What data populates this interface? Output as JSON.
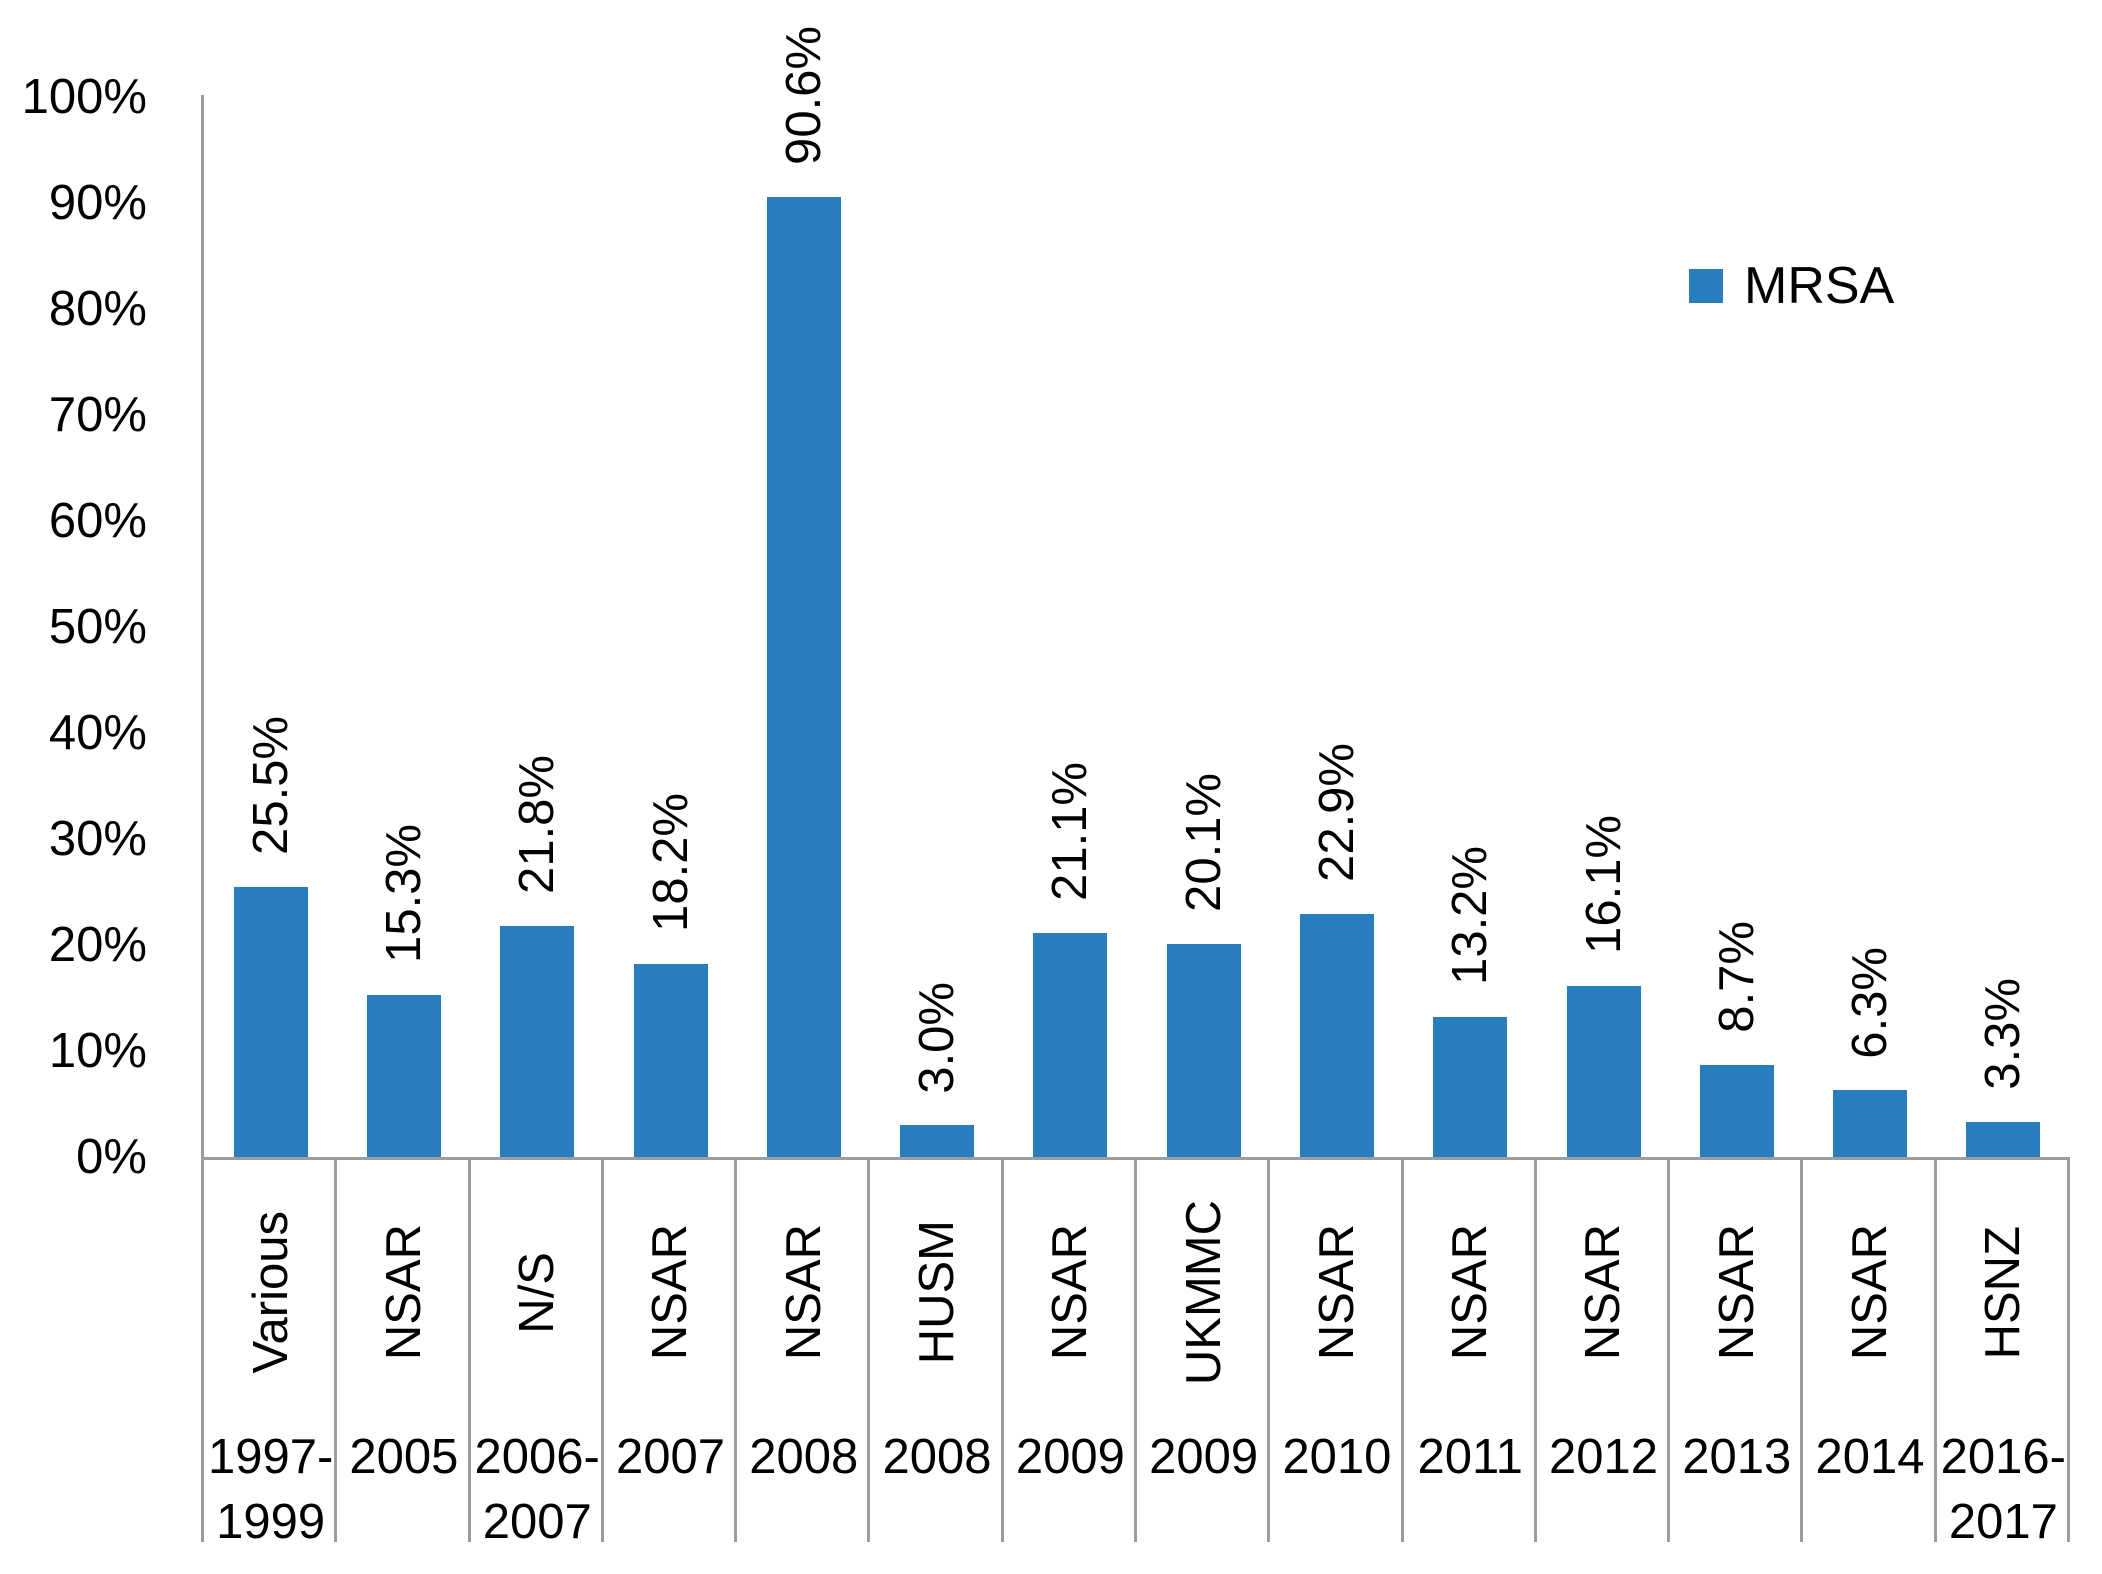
{
  "chart_data": {
    "type": "bar",
    "title": "",
    "legend_position": "top-right",
    "grid": false,
    "categories": [
      "Various",
      "NSAR",
      "N/S",
      "NSAR",
      "NSAR",
      "HUSM",
      "NSAR",
      "UKMMC",
      "NSAR",
      "NSAR",
      "NSAR",
      "NSAR",
      "NSAR",
      "HSNZ"
    ],
    "category_years": [
      "1997-1999",
      "2005",
      "2006-2007",
      "2007",
      "2008",
      "2008",
      "2009",
      "2009",
      "2010",
      "2011",
      "2012",
      "2013",
      "2014",
      "2016-2017"
    ],
    "series": [
      {
        "name": "MRSA",
        "color": "#287dbe",
        "values": [
          25.5,
          15.3,
          21.8,
          18.2,
          90.6,
          3.0,
          21.1,
          20.1,
          22.9,
          13.2,
          16.1,
          8.7,
          6.3,
          3.3
        ],
        "data_labels": [
          "25.5%",
          "15.3%",
          "21.8%",
          "18.2%",
          "90.6%",
          "3.0%",
          "21.1%",
          "20.1%",
          "22.9%",
          "13.2%",
          "16.1%",
          "8.7%",
          "6.3%",
          "3.3%"
        ]
      }
    ],
    "xlabel": "",
    "ylabel": "",
    "ylim": [
      0,
      100
    ],
    "y_ticks": [
      "0%",
      "10%",
      "20%",
      "30%",
      "40%",
      "50%",
      "60%",
      "70%",
      "80%",
      "90%",
      "100%"
    ],
    "axis_color": "#9c9c9c",
    "text_color": "#000000"
  }
}
